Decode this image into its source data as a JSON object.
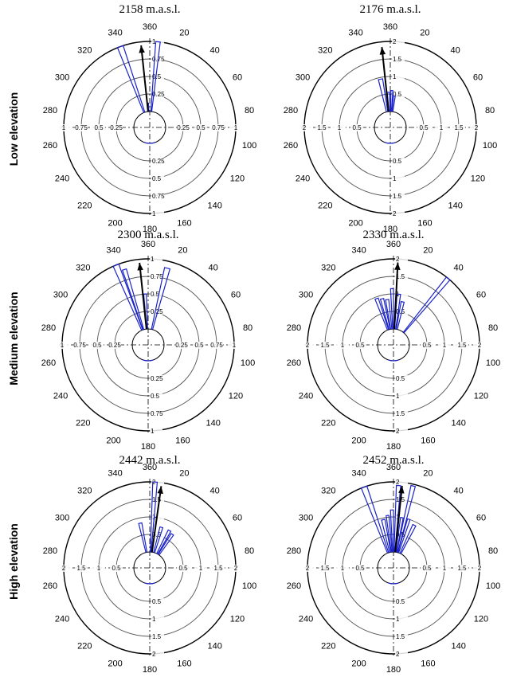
{
  "row_labels": [
    "Low elevation",
    "Medium elevation",
    "High elevation"
  ],
  "chart_data": [
    {
      "type": "rose",
      "title": "2158 m.a.s.l.",
      "row": 0,
      "col": 0,
      "rmax": 1,
      "rticks": [
        "0.25",
        "0.5",
        "0.75",
        "1"
      ],
      "angle_ticks": [
        20,
        40,
        60,
        80,
        100,
        120,
        140,
        160,
        180,
        200,
        220,
        240,
        260,
        280,
        300,
        320,
        340,
        360
      ],
      "petals": [
        {
          "from": 338,
          "to": 342,
          "r": 1.0
        },
        {
          "from": 354,
          "to": 357,
          "r": 0.12
        },
        {
          "from": 4,
          "to": 7,
          "r": 1.0
        }
      ],
      "mean_direction": 354,
      "mean_length": 0.95
    },
    {
      "type": "rose",
      "title": "2176 m.a.s.l.",
      "row": 0,
      "col": 1,
      "rmax": 2,
      "rticks": [
        "0.5",
        "1",
        "1.5",
        "2"
      ],
      "angle_ticks": [
        20,
        40,
        60,
        80,
        100,
        120,
        140,
        160,
        180,
        200,
        220,
        240,
        260,
        280,
        300,
        320,
        340,
        360
      ],
      "petals": [
        {
          "from": 346,
          "to": 351,
          "r": 0.95
        },
        {
          "from": 355,
          "to": 359,
          "r": 0.55
        },
        {
          "from": 1,
          "to": 4,
          "r": 0.6
        },
        {
          "from": 6,
          "to": 9,
          "r": 0.45
        }
      ],
      "mean_direction": 354,
      "mean_length": 1.85
    },
    {
      "type": "rose",
      "title": "2300 m.a.s.l.",
      "row": 1,
      "col": 0,
      "rmax": 1,
      "rticks": [
        "0.25",
        "0.5",
        "0.75",
        "1"
      ],
      "angle_ticks": [
        20,
        40,
        60,
        80,
        100,
        120,
        140,
        160,
        180,
        200,
        220,
        240,
        260,
        280,
        300,
        320,
        340,
        360
      ],
      "petals": [
        {
          "from": 336,
          "to": 340,
          "r": 1.0
        },
        {
          "from": 341,
          "to": 344,
          "r": 0.9
        },
        {
          "from": 355,
          "to": 358,
          "r": 0.5
        },
        {
          "from": 12,
          "to": 16,
          "r": 0.9
        }
      ],
      "mean_direction": 354,
      "mean_length": 0.95
    },
    {
      "type": "rose",
      "title": "2330 m.a.s.l.",
      "row": 1,
      "col": 1,
      "rmax": 2,
      "rticks": [
        "0.5",
        "1",
        "1.5",
        "2"
      ],
      "angle_ticks": [
        20,
        40,
        60,
        80,
        100,
        120,
        140,
        160,
        180,
        200,
        220,
        240,
        260,
        280,
        300,
        320,
        340,
        360
      ],
      "petals": [
        {
          "from": 338,
          "to": 342,
          "r": 0.95
        },
        {
          "from": 344,
          "to": 348,
          "r": 0.9
        },
        {
          "from": 350,
          "to": 354,
          "r": 0.85
        },
        {
          "from": 357,
          "to": 360,
          "r": 1.15
        },
        {
          "from": 4,
          "to": 8,
          "r": 1.0
        },
        {
          "from": 10,
          "to": 14,
          "r": 0.8
        },
        {
          "from": 38,
          "to": 41,
          "r": 2.0
        }
      ],
      "mean_direction": 3,
      "mean_length": 1.9
    },
    {
      "type": "rose",
      "title": "2442 m.a.s.l.",
      "row": 2,
      "col": 0,
      "rmax": 2,
      "rticks": [
        "0.5",
        "1",
        "1.5",
        "2"
      ],
      "angle_ticks": [
        20,
        40,
        60,
        80,
        100,
        120,
        140,
        160,
        180,
        200,
        220,
        240,
        260,
        280,
        300,
        320,
        340,
        360
      ],
      "petals": [
        {
          "from": 346,
          "to": 350,
          "r": 0.85
        },
        {
          "from": 2,
          "to": 5,
          "r": 2.0
        },
        {
          "from": 5,
          "to": 8,
          "r": 1.0
        },
        {
          "from": 14,
          "to": 18,
          "r": 0.75
        },
        {
          "from": 26,
          "to": 30,
          "r": 0.75
        },
        {
          "from": 32,
          "to": 36,
          "r": 0.7
        }
      ],
      "mean_direction": 8,
      "mean_length": 1.9
    },
    {
      "type": "rose",
      "title": "2452 m.a.s.l.",
      "row": 2,
      "col": 1,
      "rmax": 2,
      "rticks": [
        "0.5",
        "1",
        "1.5",
        "2"
      ],
      "angle_ticks": [
        20,
        40,
        60,
        80,
        100,
        120,
        140,
        160,
        180,
        200,
        220,
        240,
        260,
        280,
        300,
        320,
        340,
        360
      ],
      "petals": [
        {
          "from": 338,
          "to": 342,
          "r": 2.0
        },
        {
          "from": 346,
          "to": 350,
          "r": 0.95
        },
        {
          "from": 352,
          "to": 355,
          "r": 1.05
        },
        {
          "from": 357,
          "to": 360,
          "r": 1.2
        },
        {
          "from": 2,
          "to": 5,
          "r": 1.9
        },
        {
          "from": 8,
          "to": 11,
          "r": 1.0
        },
        {
          "from": 12,
          "to": 15,
          "r": 1.95
        },
        {
          "from": 16,
          "to": 19,
          "r": 1.0
        },
        {
          "from": 24,
          "to": 28,
          "r": 0.9
        }
      ],
      "mean_direction": 6,
      "mean_length": 1.9
    }
  ]
}
